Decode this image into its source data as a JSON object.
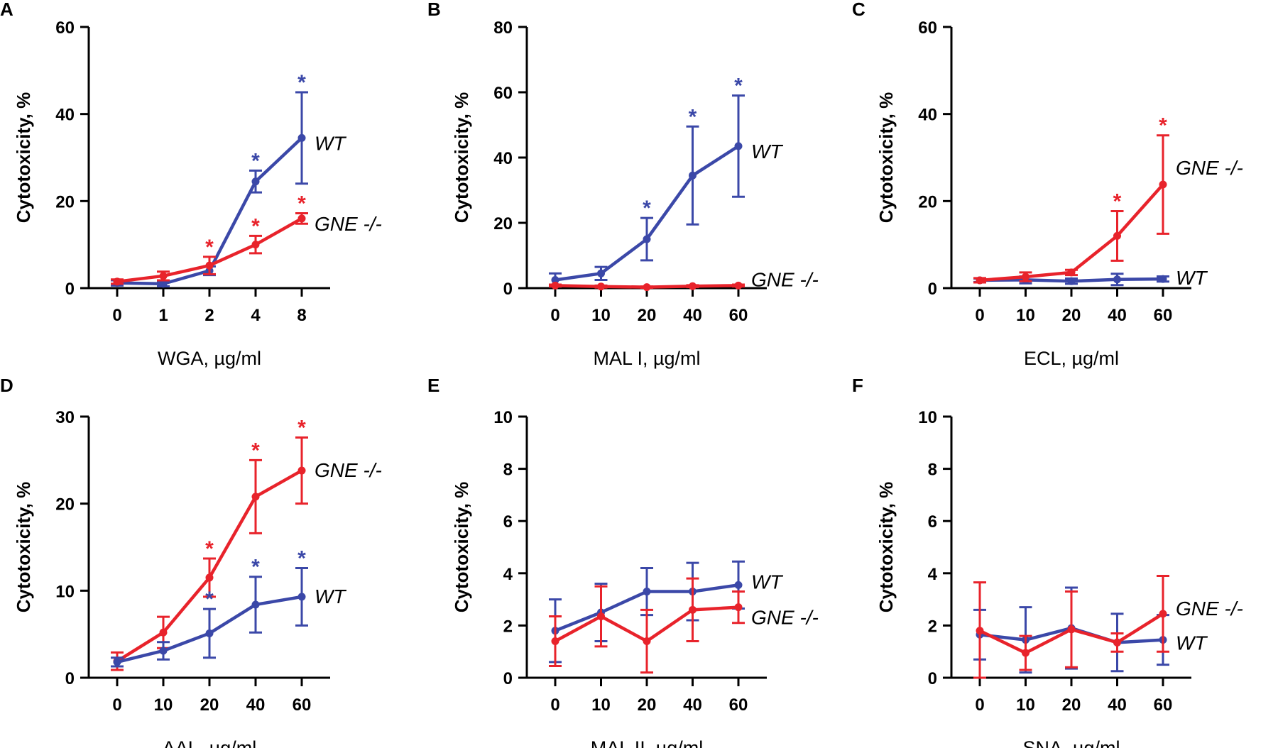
{
  "colors": {
    "wt": "#3B48A8",
    "gne": "#E8232B",
    "axis": "#000000"
  },
  "chart_data": [
    {
      "panel": "A",
      "type": "line",
      "ylabel": "Cytotoxicity, %",
      "xlabel": "WGA, µg/ml",
      "categories": [
        "0",
        "1",
        "2",
        "4",
        "8"
      ],
      "ylim": [
        0,
        60
      ],
      "yticks": [
        0,
        20,
        40,
        60
      ],
      "series": [
        {
          "name": "WT",
          "label": "WT",
          "color_key": "wt",
          "values": [
            1.2,
            1.0,
            4.0,
            24.5,
            34.5
          ],
          "err": [
            0.6,
            0.6,
            1.0,
            2.5,
            10.5
          ],
          "stars": [
            false,
            false,
            false,
            true,
            true
          ]
        },
        {
          "name": "GNE -/-",
          "label": "GNE -/-",
          "color_key": "gne",
          "values": [
            1.5,
            2.8,
            5.2,
            10.0,
            16.0
          ],
          "err": [
            0.5,
            1.0,
            2.0,
            2.0,
            1.2
          ],
          "stars": [
            false,
            false,
            true,
            true,
            true
          ]
        }
      ]
    },
    {
      "panel": "B",
      "type": "line",
      "ylabel": "Cytotoxicity, %",
      "xlabel": "MAL I, µg/ml",
      "categories": [
        "0",
        "10",
        "20",
        "40",
        "60"
      ],
      "ylim": [
        0,
        80
      ],
      "yticks": [
        0,
        20,
        40,
        60,
        80
      ],
      "series": [
        {
          "name": "WT",
          "label": "WT",
          "color_key": "wt",
          "values": [
            2.5,
            4.5,
            15.0,
            34.5,
            43.5
          ],
          "err": [
            2.0,
            2.0,
            6.5,
            15.0,
            15.5
          ],
          "stars": [
            false,
            false,
            true,
            true,
            true
          ]
        },
        {
          "name": "GNE -/-",
          "label": "GNE -/-",
          "color_key": "gne",
          "values": [
            0.8,
            0.5,
            0.3,
            0.6,
            0.8
          ],
          "err": [
            0.3,
            0.3,
            0.2,
            0.3,
            0.3
          ],
          "stars": [
            false,
            false,
            false,
            false,
            false
          ]
        }
      ]
    },
    {
      "panel": "C",
      "type": "line",
      "ylabel": "Cytotoxicity, %",
      "xlabel": "ECL, µg/ml",
      "categories": [
        "0",
        "10",
        "20",
        "40",
        "60"
      ],
      "ylim": [
        0,
        60
      ],
      "yticks": [
        0,
        20,
        40,
        60
      ],
      "series": [
        {
          "name": "WT",
          "label": "WT",
          "color_key": "wt",
          "values": [
            1.8,
            1.9,
            1.6,
            2.0,
            2.1
          ],
          "err": [
            0.4,
            0.8,
            0.6,
            1.3,
            0.6
          ],
          "stars": [
            false,
            false,
            false,
            false,
            false
          ]
        },
        {
          "name": "GNE -/-",
          "label": "GNE -/-",
          "color_key": "gne",
          "values": [
            1.8,
            2.6,
            3.6,
            12.0,
            23.8
          ],
          "err": [
            0.5,
            1.0,
            0.6,
            5.7,
            11.3
          ],
          "stars": [
            false,
            false,
            false,
            true,
            true
          ]
        }
      ]
    },
    {
      "panel": "D",
      "type": "line",
      "ylabel": "Cytotoxicity, %",
      "xlabel": "AAL, µg/ml",
      "categories": [
        "0",
        "10",
        "20",
        "40",
        "60"
      ],
      "ylim": [
        0,
        30
      ],
      "yticks": [
        0,
        10,
        20,
        30
      ],
      "series": [
        {
          "name": "GNE -/-",
          "label": "GNE -/-",
          "color_key": "gne",
          "values": [
            1.9,
            5.2,
            11.5,
            20.8,
            23.8
          ],
          "err": [
            1.0,
            1.8,
            2.2,
            4.2,
            3.8
          ],
          "stars": [
            false,
            false,
            true,
            true,
            true
          ]
        },
        {
          "name": "WT",
          "label": "WT",
          "color_key": "wt",
          "values": [
            1.8,
            3.1,
            5.1,
            8.4,
            9.3
          ],
          "err": [
            0.5,
            1.0,
            2.8,
            3.2,
            3.3
          ],
          "stars": [
            false,
            false,
            true,
            true,
            true
          ]
        }
      ]
    },
    {
      "panel": "E",
      "type": "line",
      "ylabel": "Cytotoxicity, %",
      "xlabel": "MAL II, µg/ml",
      "categories": [
        "0",
        "10",
        "20",
        "40",
        "60"
      ],
      "ylim": [
        0,
        10
      ],
      "yticks": [
        0,
        2,
        4,
        6,
        8,
        10
      ],
      "series": [
        {
          "name": "WT",
          "label": "WT",
          "color_key": "wt",
          "values": [
            1.8,
            2.5,
            3.3,
            3.3,
            3.55
          ],
          "err": [
            1.2,
            1.1,
            0.9,
            1.1,
            0.9
          ],
          "stars": [
            false,
            false,
            false,
            false,
            false
          ]
        },
        {
          "name": "GNE -/-",
          "label": "GNE -/-",
          "color_key": "gne",
          "values": [
            1.4,
            2.35,
            1.4,
            2.6,
            2.7
          ],
          "err": [
            0.95,
            1.15,
            1.2,
            1.2,
            0.6
          ],
          "stars": [
            false,
            false,
            false,
            false,
            false
          ]
        }
      ]
    },
    {
      "panel": "F",
      "type": "line",
      "ylabel": "Cytotoxicity, %",
      "xlabel": "SNA, µg/ml",
      "categories": [
        "0",
        "10",
        "20",
        "40",
        "60"
      ],
      "ylim": [
        0,
        10
      ],
      "yticks": [
        0,
        2,
        4,
        6,
        8,
        10
      ],
      "series": [
        {
          "name": "WT",
          "label": "WT",
          "color_key": "wt",
          "values": [
            1.65,
            1.45,
            1.9,
            1.35,
            1.45
          ],
          "err": [
            0.95,
            1.25,
            1.55,
            1.1,
            0.95
          ],
          "stars": [
            false,
            false,
            false,
            false,
            false
          ]
        },
        {
          "name": "GNE -/-",
          "label": "GNE -/-",
          "color_key": "gne",
          "values": [
            1.8,
            0.95,
            1.85,
            1.35,
            2.45
          ],
          "err": [
            1.85,
            0.65,
            1.45,
            0.35,
            1.45
          ],
          "stars": [
            false,
            false,
            false,
            false,
            false
          ]
        }
      ]
    }
  ]
}
